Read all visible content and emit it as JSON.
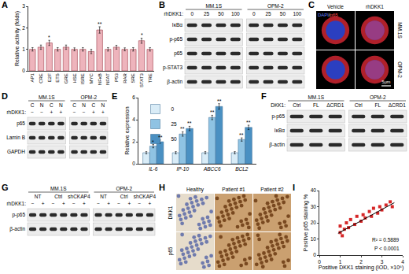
{
  "chart_data": [
    {
      "label": "A",
      "type": "bar",
      "categories": [
        "AP1",
        "CRE",
        "E2F",
        "ETS",
        "GRE",
        "HSE",
        "ISRE",
        "MYC",
        "NFκB",
        "NFAT",
        "P53",
        "RAR",
        "SRE",
        "STAT3",
        "TRE"
      ],
      "values": [
        1.0,
        1.1,
        1.3,
        1.0,
        1.1,
        1.0,
        1.0,
        0.9,
        1.9,
        1.0,
        1.1,
        1.0,
        1.0,
        1.4,
        1.0
      ],
      "errors": [
        0.08,
        0.1,
        0.12,
        0.08,
        0.1,
        0.07,
        0.08,
        0.1,
        0.15,
        0.08,
        0.09,
        0.07,
        0.08,
        0.12,
        0.08
      ],
      "color": "#eeb4bc",
      "ylabel": "Relative activity (folds)",
      "ylim": [
        0,
        3
      ],
      "yticks": [
        0,
        1,
        2,
        3
      ],
      "grid": false,
      "annotations": [
        {
          "category": "E2F",
          "text": "*"
        },
        {
          "category": "NFκB",
          "text": "**"
        },
        {
          "category": "STAT3",
          "text": "*"
        }
      ]
    },
    {
      "label": "E",
      "type": "bar",
      "categories": [
        "IL-6",
        "IP-10",
        "ABCC6",
        "BCL2"
      ],
      "series": [
        {
          "name": "0",
          "color": "#d9ecf7",
          "values": [
            1.0,
            1.0,
            1.0,
            1.0
          ],
          "errors": [
            0.1,
            0.1,
            0.1,
            0.1
          ]
        },
        {
          "name": "25",
          "color": "#8fc3e3",
          "values": [
            1.6,
            2.7,
            4.2,
            2.2
          ],
          "errors": [
            0.15,
            0.2,
            0.2,
            0.15
          ]
        },
        {
          "name": "50",
          "color": "#4a90c2",
          "values": [
            2.0,
            3.2,
            5.2,
            3.3
          ],
          "errors": [
            0.15,
            0.2,
            0.25,
            0.2
          ]
        }
      ],
      "ylabel": "Relative expression",
      "ylim": [
        0,
        6
      ],
      "yticks": [
        0,
        2,
        4,
        6
      ],
      "grid": false,
      "legend": "top-left",
      "annotations": [
        {
          "category": "IL-6",
          "series": "25",
          "text": "*"
        },
        {
          "category": "IL-6",
          "series": "50",
          "text": "**"
        },
        {
          "category": "IP-10",
          "series": "25",
          "text": "**"
        },
        {
          "category": "IP-10",
          "series": "50",
          "text": "**"
        },
        {
          "category": "ABCC6",
          "series": "25",
          "text": "**"
        },
        {
          "category": "ABCC6",
          "series": "50",
          "text": "**"
        },
        {
          "category": "BCL2",
          "series": "25",
          "text": "**"
        },
        {
          "category": "BCL2",
          "series": "50",
          "text": "**"
        }
      ]
    },
    {
      "label": "I",
      "type": "scatter",
      "x": [
        1.0,
        1.0,
        1.1,
        1.2,
        1.3,
        1.4,
        1.5,
        1.7,
        1.8,
        2.0,
        2.1,
        2.2,
        2.4,
        2.5,
        2.6,
        2.8,
        2.9,
        3.0,
        3.2,
        3.4,
        3.5
      ],
      "values": [
        14,
        18,
        12,
        16,
        20,
        17,
        22,
        19,
        24,
        21,
        25,
        23,
        27,
        24,
        29,
        26,
        30,
        28,
        31,
        33,
        30
      ],
      "color": "#d62728",
      "marker": "square",
      "xlabel": "Positive DKK1 staining (IOD, ×10⁶)",
      "ylabel": "Positive p65 staining %",
      "xlim": [
        0,
        4
      ],
      "xticks": [
        0,
        1,
        2,
        3,
        4
      ],
      "ylim": [
        0,
        40
      ],
      "yticks": [
        0,
        10,
        20,
        30,
        40
      ],
      "grid": false,
      "fit": {
        "x": [
          0.9,
          3.6
        ],
        "values": [
          13.5,
          32.5
        ]
      },
      "annotations": [
        "R² = 0.5889",
        "P < 0.0001"
      ]
    }
  ],
  "blots": [
    {
      "label": "B",
      "groups": [
        "MM.1S",
        "OPM-2"
      ],
      "header_rows": [
        {
          "label": "rhDKK1:",
          "cells": [
            [
              "0",
              "25",
              "50",
              "100"
            ],
            [
              "0",
              "25",
              "50",
              "100"
            ]
          ]
        }
      ],
      "rows": [
        "IκBα",
        "p-p65",
        "p65",
        "p-STAT3",
        "β-actin"
      ]
    },
    {
      "label": "D",
      "groups": [
        "MM.1S",
        "OPM-2"
      ],
      "header_rows": [
        {
          "cells": [
            [
              "C",
              "N",
              "C",
              "N"
            ],
            [
              "C",
              "N",
              "C",
              "N"
            ]
          ]
        },
        {
          "label": "rhDKK1:",
          "cells": [
            [
              "−",
              "−",
              "+",
              "+"
            ],
            [
              "−",
              "−",
              "+",
              "+"
            ]
          ]
        }
      ],
      "rows": [
        "p65",
        "Lamin B",
        "GAPDH"
      ]
    },
    {
      "label": "F",
      "groups": [
        "MM.1S",
        "OPM-2"
      ],
      "header_rows": [
        {
          "label": "DKK1:",
          "cells": [
            [
              "Ctrl",
              "FL",
              "ΔCRD1"
            ],
            [
              "Ctrl",
              "FL",
              "ΔCRD1"
            ]
          ]
        }
      ],
      "rows": [
        "p-p65",
        "IκBα",
        "β-actin"
      ]
    },
    {
      "label": "G",
      "groups": [
        "MM.1S",
        "OPM-2"
      ],
      "header_rows": [
        {
          "cells": [
            [
              "NT",
              "Ctrl",
              "shCKAP4"
            ],
            [
              "NT",
              "Ctrl",
              "shCKAP4"
            ]
          ]
        },
        {
          "label": "rhDKK1:",
          "cells": [
            [
              "−",
              "+",
              "−",
              "+",
              "−",
              "+"
            ],
            [
              "−",
              "+",
              "−",
              "+",
              "−",
              "+"
            ]
          ]
        }
      ],
      "rows": [
        "p-p65",
        "β-actin"
      ]
    }
  ],
  "micrographs": [
    {
      "label": "C",
      "columns": [
        "Vehicle",
        "rhDKK1"
      ],
      "rows": [
        "MM.1S",
        "OPM-2"
      ],
      "stain_labels": [
        {
          "text": "DAPI",
          "color": "#6a86ff"
        },
        {
          "text": "/",
          "color": "#ffffff"
        },
        {
          "text": "p65",
          "color": "#ff4a4a"
        }
      ],
      "scale_bar": "5μm"
    },
    {
      "label": "H",
      "columns": [
        "Healthy",
        "Patient #1",
        "Patient #2"
      ],
      "rows": [
        "DKK1",
        "p65"
      ]
    }
  ]
}
